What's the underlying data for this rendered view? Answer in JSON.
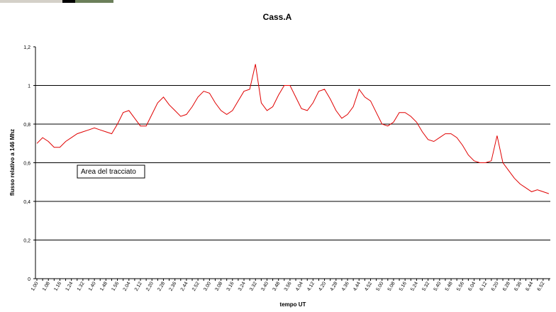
{
  "chart_data": {
    "type": "line",
    "title": "Cass.A",
    "x_label": "tempo UT",
    "y_label": "flusso relativo a 146 Mhz",
    "tooltip": "Area del tracciato",
    "categories": [
      "1.00",
      null,
      "1.08",
      null,
      "1.16",
      null,
      "1.24",
      null,
      "1.32",
      null,
      "1.40",
      null,
      "1.48",
      null,
      "1.56",
      null,
      "2.04",
      null,
      "2.12",
      null,
      "2.20",
      null,
      "2.28",
      null,
      "2.36",
      null,
      "2.44",
      null,
      "2.52",
      null,
      "3.00",
      null,
      "3.08",
      null,
      "3.16",
      null,
      "3.24",
      null,
      "3.32",
      null,
      "3.40",
      null,
      "3.48",
      null,
      "3.56",
      null,
      "4.04",
      null,
      "4.12",
      null,
      "4.20",
      null,
      "4.28",
      null,
      "4.36",
      null,
      "4.44",
      null,
      "4.52",
      null,
      "5.00",
      null,
      "5.08",
      null,
      "5.16",
      null,
      "5.24",
      null,
      "5.32",
      null,
      "5.40",
      null,
      "5.48",
      null,
      "5.56",
      null,
      "6.04",
      null,
      "6.12",
      null,
      "6.20",
      null,
      "6.28",
      null,
      "6.36",
      null,
      "6.44",
      null,
      "6.52",
      null
    ],
    "series": [
      {
        "name": "flusso",
        "color": "#e00000",
        "values": [
          0.7,
          0.73,
          0.71,
          0.68,
          0.68,
          0.71,
          0.73,
          0.75,
          0.76,
          0.77,
          0.78,
          0.77,
          0.76,
          0.75,
          0.8,
          0.86,
          0.87,
          0.83,
          0.79,
          0.79,
          0.85,
          0.91,
          0.94,
          0.9,
          0.87,
          0.84,
          0.85,
          0.89,
          0.94,
          0.97,
          0.96,
          0.91,
          0.87,
          0.85,
          0.87,
          0.92,
          0.97,
          0.98,
          1.11,
          0.91,
          0.87,
          0.89,
          0.95,
          1.0,
          1.0,
          0.94,
          0.88,
          0.87,
          0.91,
          0.97,
          0.98,
          0.93,
          0.87,
          0.83,
          0.85,
          0.89,
          0.98,
          0.94,
          0.92,
          0.86,
          0.8,
          0.79,
          0.81,
          0.86,
          0.86,
          0.84,
          0.81,
          0.76,
          0.72,
          0.71,
          0.73,
          0.75,
          0.75,
          0.73,
          0.69,
          0.64,
          0.61,
          0.6,
          0.6,
          0.61,
          0.74,
          0.6,
          0.56,
          0.52,
          0.49,
          0.47,
          0.45,
          0.46,
          0.45,
          0.44
        ]
      }
    ],
    "ylim": [
      0,
      1.2
    ],
    "yticks": [
      0,
      {
        "value": 0.2,
        "label": "0,2"
      },
      {
        "value": 0.4,
        "label": "0,4"
      },
      {
        "value": 0.6,
        "label": "0,6"
      },
      {
        "value": 0.8,
        "label": "0,8"
      },
      1,
      {
        "value": 1.2,
        "label": "1,2"
      }
    ],
    "grid": true
  }
}
